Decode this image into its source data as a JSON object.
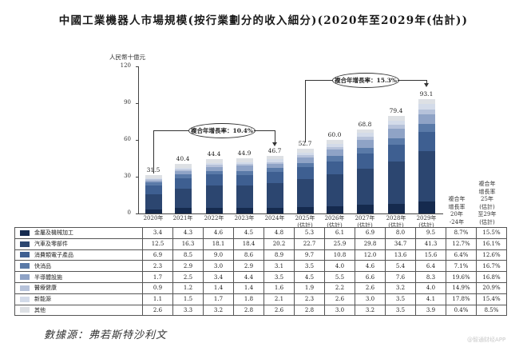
{
  "title": "中國工業機器人市場規模(按行業劃分的收入細分)(2020年至2029年(估計))",
  "unit_label": "人民幣十億元",
  "y_ticks": [
    "0",
    "30",
    "60",
    "90",
    "120"
  ],
  "cagr_bubbles": [
    {
      "label": "複合年增長率：10.4%"
    },
    {
      "label": "複合年增長率：15.3%"
    }
  ],
  "cagr_headers": {
    "hist": "複合年\n增長率\n20年\n-24年",
    "fcst": "複合年\n增長率\n25年\n(估計)\n至29年\n(估計)"
  },
  "source": "數據源：弗若斯特沙利文",
  "watermark": "@智通财经APP",
  "chart_data": {
    "type": "bar",
    "stacked": true,
    "title": "中國工業機器人市場規模(按行業劃分的收入細分)(2020年至2029年(估計))",
    "ylabel": "人民幣十億元",
    "xlabel": "",
    "ylim": [
      0,
      120
    ],
    "yticks": [
      0,
      30,
      60,
      90,
      120
    ],
    "grid": false,
    "legend_position": "table-left",
    "categories": [
      "2020年",
      "2021年",
      "2022年",
      "2023年",
      "2024年",
      "2025年\n(估計)",
      "2026年\n(估計)",
      "2027年\n(估計)",
      "2028年\n(估計)",
      "2029年\n(估計)"
    ],
    "totals": [
      "31.5",
      "40.4",
      "44.4",
      "44.9",
      "46.7",
      "52.7",
      "60.0",
      "68.8",
      "79.4",
      "93.1"
    ],
    "annotations": [
      {
        "text": "複合年增長率：10.4%",
        "from": "2020年",
        "to": "2024年"
      },
      {
        "text": "複合年增長率：15.3%",
        "from": "2025年(估計)",
        "to": "2029年(估計)"
      }
    ],
    "series": [
      {
        "name": "金屬及機械加工",
        "color": "#152a4e",
        "values": [
          3.4,
          4.3,
          4.6,
          4.5,
          4.8,
          5.3,
          6.1,
          6.9,
          8.0,
          9.5
        ],
        "cagr_20_24": "8.7%",
        "cagr_25_29": "15.5%"
      },
      {
        "name": "汽車及零部件",
        "color": "#2c4670",
        "values": [
          12.5,
          16.3,
          18.1,
          18.4,
          20.2,
          22.7,
          25.9,
          29.8,
          34.7,
          41.3
        ],
        "cagr_20_24": "12.7%",
        "cagr_25_29": "16.1%"
      },
      {
        "name": "消費類電子產品",
        "color": "#3e5f91",
        "values": [
          6.9,
          8.5,
          9.0,
          8.6,
          8.9,
          9.7,
          10.8,
          12.0,
          13.6,
          15.6
        ],
        "cagr_20_24": "6.4%",
        "cagr_25_29": "12.6%"
      },
      {
        "name": "快消品",
        "color": "#5a7aa8",
        "values": [
          2.3,
          2.9,
          3.0,
          2.9,
          3.1,
          3.5,
          4.0,
          4.6,
          5.4,
          6.4
        ],
        "cagr_20_24": "7.1%",
        "cagr_25_29": "16.7%"
      },
      {
        "name": "半導體設施",
        "color": "#8fa3c6",
        "values": [
          1.7,
          2.5,
          3.4,
          4.4,
          3.5,
          4.5,
          5.5,
          6.6,
          7.6,
          8.3
        ],
        "cagr_20_24": "19.6%",
        "cagr_25_29": "16.8%"
      },
      {
        "name": "醫療健康",
        "color": "#b6c2da",
        "values": [
          0.9,
          1.2,
          1.4,
          1.4,
          1.6,
          1.9,
          2.2,
          2.6,
          3.2,
          4.0
        ],
        "cagr_20_24": "14.9%",
        "cagr_25_29": "20.9%"
      },
      {
        "name": "新能源",
        "color": "#d3dbe9",
        "values": [
          1.1,
          1.5,
          1.7,
          1.8,
          2.1,
          2.3,
          2.6,
          3.0,
          3.5,
          4.1
        ],
        "cagr_20_24": "17.8%",
        "cagr_25_29": "15.4%"
      },
      {
        "name": "其他",
        "color": "#dde0e4",
        "values": [
          2.6,
          3.3,
          3.2,
          2.8,
          2.6,
          2.8,
          3.0,
          3.2,
          3.5,
          3.9
        ],
        "cagr_20_24": "0.4%",
        "cagr_25_29": "8.5%"
      }
    ]
  }
}
